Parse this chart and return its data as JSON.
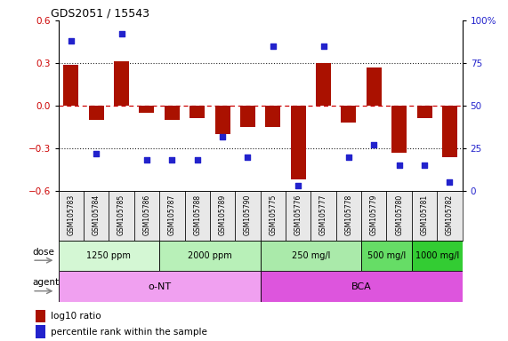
{
  "title": "GDS2051 / 15543",
  "samples": [
    "GSM105783",
    "GSM105784",
    "GSM105785",
    "GSM105786",
    "GSM105787",
    "GSM105788",
    "GSM105789",
    "GSM105790",
    "GSM105775",
    "GSM105776",
    "GSM105777",
    "GSM105778",
    "GSM105779",
    "GSM105780",
    "GSM105781",
    "GSM105782"
  ],
  "log10_ratio": [
    0.29,
    -0.1,
    0.31,
    -0.05,
    -0.1,
    -0.09,
    -0.2,
    -0.15,
    -0.15,
    -0.52,
    0.3,
    -0.12,
    0.27,
    -0.33,
    -0.09,
    -0.36
  ],
  "percentile_rank": [
    88,
    22,
    92,
    18,
    18,
    18,
    32,
    20,
    85,
    3,
    85,
    20,
    27,
    15,
    15,
    5
  ],
  "ylim_left": [
    -0.6,
    0.6
  ],
  "ylim_right": [
    0,
    100
  ],
  "yticks_left": [
    -0.6,
    -0.3,
    0.0,
    0.3,
    0.6
  ],
  "yticks_right": [
    0,
    25,
    50,
    75,
    100
  ],
  "bar_color": "#aa1100",
  "dot_color": "#2222cc",
  "dose_groups": [
    {
      "label": "1250 ppm",
      "start": 0,
      "end": 3,
      "color": "#d4f7d4"
    },
    {
      "label": "2000 ppm",
      "start": 4,
      "end": 7,
      "color": "#b8f0b8"
    },
    {
      "label": "250 mg/l",
      "start": 8,
      "end": 11,
      "color": "#aaeaaa"
    },
    {
      "label": "500 mg/l",
      "start": 12,
      "end": 13,
      "color": "#66dd66"
    },
    {
      "label": "1000 mg/l",
      "start": 14,
      "end": 15,
      "color": "#33cc33"
    }
  ],
  "agent_groups": [
    {
      "label": "o-NT",
      "start": 0,
      "end": 7,
      "color": "#f0a0f0"
    },
    {
      "label": "BCA",
      "start": 8,
      "end": 15,
      "color": "#dd55dd"
    }
  ],
  "legend_bar_label": "log10 ratio",
  "legend_dot_label": "percentile rank within the sample",
  "hline0_color": "#cc0000",
  "grid_color": "#222222",
  "right_axis_color": "#2222cc",
  "left_axis_color": "#cc0000",
  "fig_width": 5.71,
  "fig_height": 3.84,
  "dpi": 100
}
